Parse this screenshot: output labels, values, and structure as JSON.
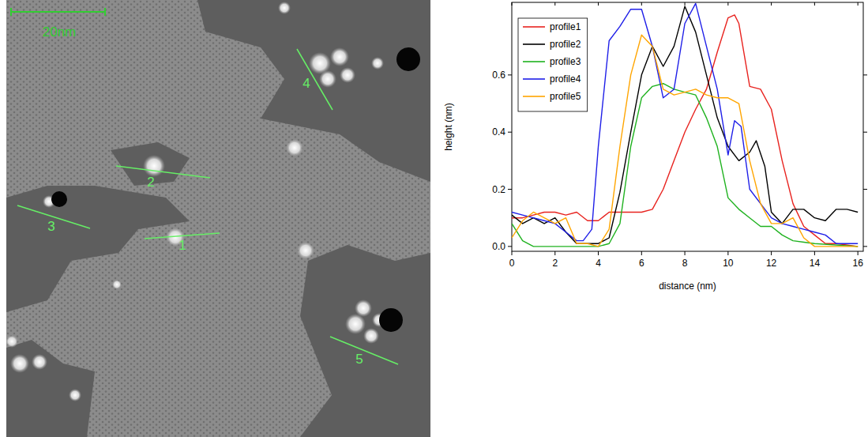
{
  "image": {
    "scale_bar": "20nm",
    "profile_labels": [
      "1",
      "2",
      "3",
      "4",
      "5"
    ]
  },
  "chart_data": {
    "type": "line",
    "x_label": "distance (nm)",
    "y_label": "height (nm)",
    "xlim": [
      0,
      16.25
    ],
    "ylim": [
      -0.017,
      0.854
    ],
    "xticks": [
      0,
      2,
      4,
      6,
      8,
      10,
      12,
      14,
      16
    ],
    "yticks": [
      {
        "value": 0,
        "label": "0.0"
      },
      {
        "value": 0.2,
        "label": "0.2"
      },
      {
        "value": 0.4,
        "label": "0.4"
      },
      {
        "value": 0.6,
        "label": "0.6"
      }
    ],
    "legend": "upper left",
    "grid": false,
    "series": [
      {
        "name": "profile1",
        "color": "#e8231f",
        "x": [
          0,
          0.5,
          1,
          1.5,
          2,
          2.5,
          3,
          3.5,
          4,
          4.5,
          5,
          5.5,
          6,
          6.5,
          7,
          7.5,
          8,
          8.5,
          9,
          9.5,
          10,
          10.3,
          10.5,
          11,
          11.5,
          12,
          12.5,
          13,
          13.5,
          14,
          14.5,
          15,
          16
        ],
        "values": [
          0.1,
          0.1,
          0.11,
          0.12,
          0.12,
          0.11,
          0.12,
          0.09,
          0.09,
          0.12,
          0.12,
          0.12,
          0.12,
          0.13,
          0.2,
          0.3,
          0.4,
          0.48,
          0.55,
          0.68,
          0.8,
          0.81,
          0.78,
          0.56,
          0.55,
          0.48,
          0.3,
          0.15,
          0.07,
          0.04,
          0.01,
          0.01,
          0.0
        ]
      },
      {
        "name": "profile2",
        "color": "#000000",
        "x": [
          0,
          0.5,
          1,
          1.5,
          2,
          2.5,
          3,
          3.5,
          4,
          4.5,
          5,
          5.5,
          6,
          6.5,
          7,
          7.5,
          8,
          8.5,
          9,
          9.5,
          10,
          10.5,
          11,
          11.3,
          11.7,
          12,
          12.5,
          13,
          13.5,
          14,
          14.5,
          15,
          15.5,
          16
        ],
        "values": [
          0.11,
          0.08,
          0.1,
          0.08,
          0.1,
          0.05,
          0.01,
          0.01,
          0.01,
          0.03,
          0.19,
          0.4,
          0.6,
          0.7,
          0.63,
          0.7,
          0.84,
          0.75,
          0.6,
          0.45,
          0.35,
          0.3,
          0.33,
          0.37,
          0.28,
          0.12,
          0.08,
          0.13,
          0.13,
          0.1,
          0.09,
          0.13,
          0.13,
          0.12
        ]
      },
      {
        "name": "profile3",
        "color": "#1fb21f",
        "x": [
          0,
          0.5,
          1,
          2,
          3,
          4,
          4.5,
          5,
          5.5,
          6,
          6.5,
          7,
          7.5,
          8,
          8.5,
          9,
          9.5,
          10,
          10.5,
          11,
          11.5,
          12,
          12.5,
          13,
          14,
          16
        ],
        "values": [
          0.08,
          0.02,
          0.0,
          0.0,
          0.0,
          0.0,
          0.01,
          0.08,
          0.35,
          0.52,
          0.56,
          0.57,
          0.55,
          0.54,
          0.53,
          0.45,
          0.35,
          0.17,
          0.13,
          0.1,
          0.07,
          0.07,
          0.04,
          0.02,
          0.01,
          0.0
        ]
      },
      {
        "name": "profile4",
        "color": "#1f1fe8",
        "x": [
          0,
          0.5,
          1,
          1.5,
          2,
          2.5,
          3,
          3.3,
          3.7,
          4,
          4.5,
          5,
          5.5,
          6,
          6.5,
          7,
          7.5,
          8,
          8.5,
          9,
          9.5,
          10,
          10.3,
          10.6,
          11,
          11.5,
          12,
          12.5,
          13,
          13.5,
          14,
          14.5,
          15,
          16
        ],
        "values": [
          0.12,
          0.11,
          0.1,
          0.09,
          0.08,
          0.05,
          0.02,
          0.02,
          0.06,
          0.35,
          0.72,
          0.77,
          0.83,
          0.83,
          0.7,
          0.52,
          0.55,
          0.78,
          0.85,
          0.7,
          0.55,
          0.32,
          0.44,
          0.42,
          0.2,
          0.15,
          0.1,
          0.08,
          0.07,
          0.06,
          0.05,
          0.04,
          0.01,
          0.01
        ]
      },
      {
        "name": "profile5",
        "color": "#ffa500",
        "x": [
          0,
          0.5,
          1,
          1.5,
          2,
          2.5,
          3,
          3.5,
          4,
          4.5,
          5,
          5.5,
          6,
          6.5,
          7,
          7.5,
          8,
          8.5,
          9,
          9.5,
          10,
          10.5,
          11,
          11.5,
          12,
          12.5,
          13,
          13.5,
          14,
          15,
          16
        ],
        "values": [
          0.03,
          0.09,
          0.12,
          0.1,
          0.08,
          0.1,
          0.01,
          0.01,
          0.0,
          0.06,
          0.35,
          0.6,
          0.74,
          0.7,
          0.55,
          0.53,
          0.54,
          0.55,
          0.53,
          0.52,
          0.52,
          0.5,
          0.3,
          0.15,
          0.08,
          0.08,
          0.1,
          0.03,
          0.0,
          0.0,
          0.0
        ]
      }
    ]
  }
}
